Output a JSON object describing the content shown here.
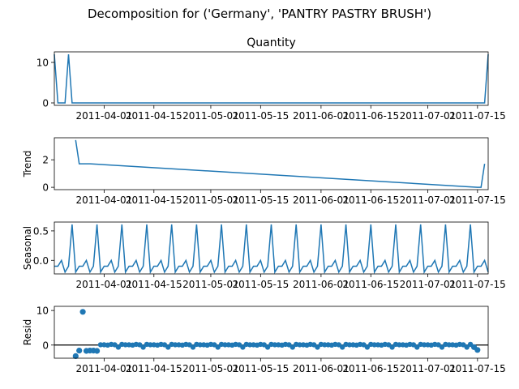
{
  "figure": {
    "suptitle": "Decomposition for ('Germany', 'PANTRY PASTRY BRUSH')"
  },
  "colors": {
    "line": "#1f77b4",
    "axis": "#000000",
    "background": "#ffffff"
  },
  "chart_data": [
    {
      "type": "line",
      "title": "Quantity",
      "ylabel": "",
      "x_ticklabels": [
        "2011-04-01",
        "2011-04-15",
        "2011-05-01",
        "2011-05-15",
        "2011-06-01",
        "2011-06-15",
        "2011-07-01",
        "2011-07-15"
      ],
      "y_ticks": [
        0,
        10
      ],
      "ylim": [
        -0.6,
        12.6
      ],
      "series": [
        {
          "x": [
            "2011-03-18",
            "2011-03-19",
            "2011-03-20",
            "2011-03-21",
            "2011-03-22",
            "2011-03-23",
            "2011-07-17",
            "2011-07-18"
          ],
          "values": [
            12,
            0,
            0,
            0,
            12,
            0,
            0,
            12
          ]
        }
      ]
    },
    {
      "type": "line",
      "title": "",
      "ylabel": "Trend",
      "x_ticklabels": [
        "2011-04-01",
        "2011-04-15",
        "2011-05-01",
        "2011-05-15",
        "2011-06-01",
        "2011-06-15",
        "2011-07-01",
        "2011-07-15"
      ],
      "y_ticks": [
        0,
        2
      ],
      "ylim": [
        -0.17,
        3.6
      ],
      "series": [
        {
          "x": [
            "2011-03-24",
            "2011-03-25",
            "2011-03-26",
            "2011-03-27",
            "2011-03-28",
            "2011-07-15",
            "2011-07-16",
            "2011-07-17"
          ],
          "values": [
            3.43,
            1.71,
            1.71,
            1.71,
            1.71,
            0,
            0,
            1.71
          ]
        }
      ]
    },
    {
      "type": "line",
      "title": "",
      "ylabel": "Seasonal",
      "x_ticklabels": [
        "2011-04-01",
        "2011-04-15",
        "2011-05-01",
        "2011-05-15",
        "2011-06-01",
        "2011-06-15",
        "2011-07-01",
        "2011-07-15"
      ],
      "y_ticks": [
        0.0,
        0.5
      ],
      "ytick_labels": [
        "0.0",
        "0.5"
      ],
      "ylim": [
        -0.23,
        0.65
      ],
      "period_pattern": [
        -0.1,
        -0.1,
        0.0,
        -0.2,
        -0.1,
        0.61,
        -0.2
      ],
      "period_start": "2011-03-18",
      "period_end": "2011-07-18"
    },
    {
      "type": "scatter",
      "title": "",
      "ylabel": "Resid",
      "x_ticklabels": [
        "2011-04-01",
        "2011-04-15",
        "2011-05-01",
        "2011-05-15",
        "2011-06-01",
        "2011-06-15",
        "2011-07-01",
        "2011-07-15"
      ],
      "y_ticks": [
        0,
        10
      ],
      "ylim": [
        -3.8,
        11.2
      ],
      "baseline": 0,
      "series": [
        {
          "points": [
            {
              "x": "2011-03-24",
              "y": -3.2
            },
            {
              "x": "2011-03-25",
              "y": -1.6
            },
            {
              "x": "2011-03-26",
              "y": 9.6
            },
            {
              "x": "2011-03-27",
              "y": -1.7
            },
            {
              "x": "2011-03-28",
              "y": -1.6
            },
            {
              "x": "2011-03-29",
              "y": -1.6
            },
            {
              "x": "2011-03-30",
              "y": -1.7
            },
            {
              "x": "2011-07-14",
              "y": -0.6
            },
            {
              "x": "2011-07-15",
              "y": -1.4
            }
          ],
          "background_pattern": [
            0.1,
            0.1,
            0.0,
            0.2,
            0.1,
            -0.61,
            0.2
          ],
          "background_start": "2011-03-31",
          "background_end": "2011-07-13"
        }
      ]
    }
  ]
}
